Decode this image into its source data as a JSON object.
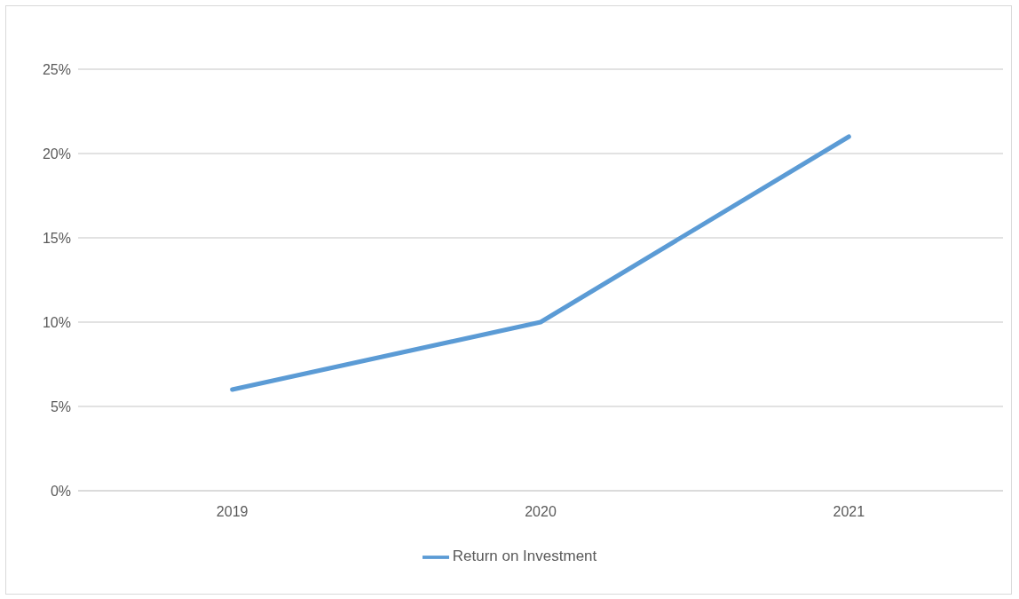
{
  "chart_data": {
    "type": "line",
    "categories": [
      "2019",
      "2020",
      "2021"
    ],
    "series": [
      {
        "name": "Return on Investment",
        "color": "#5b9bd5",
        "values": [
          6,
          10,
          21
        ]
      }
    ],
    "ylim": [
      0,
      25
    ],
    "yticks": [
      {
        "value": 0,
        "label": "0%"
      },
      {
        "value": 5,
        "label": "5%"
      },
      {
        "value": 10,
        "label": "10%"
      },
      {
        "value": 15,
        "label": "15%"
      },
      {
        "value": 20,
        "label": "20%"
      },
      {
        "value": 25,
        "label": "25%"
      }
    ],
    "grid": "y",
    "legend": "bottom"
  }
}
